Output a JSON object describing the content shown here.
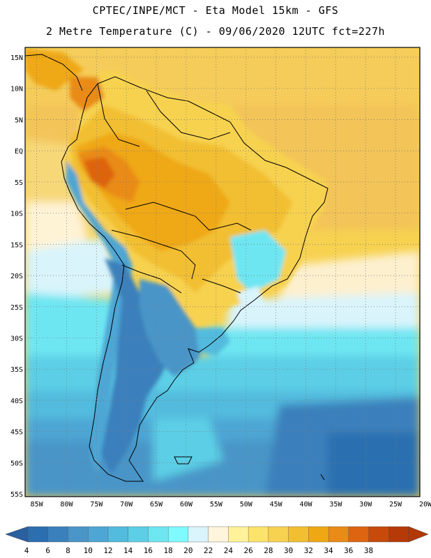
{
  "header": {
    "line1": "CPTEC/INPE/MCT -  Eta Model 15km - GFS",
    "line2": "2 Metre Temperature (C) - 09/06/2020 12UTC fct=227h"
  },
  "map": {
    "lat_labels": [
      "15N",
      "10N",
      "5N",
      "EQ",
      "5S",
      "10S",
      "15S",
      "20S",
      "25S",
      "30S",
      "35S",
      "40S",
      "45S",
      "50S",
      "55S"
    ],
    "lon_labels": [
      "85W",
      "80W",
      "75W",
      "70W",
      "65W",
      "60W",
      "55W",
      "50W",
      "45W",
      "40W",
      "35W",
      "30W",
      "25W",
      "20W"
    ],
    "lat_range": [
      15,
      -57
    ],
    "lon_range": [
      -86,
      -20
    ]
  },
  "colorbar": {
    "tick_labels": [
      "4",
      "6",
      "8",
      "10",
      "12",
      "14",
      "16",
      "18",
      "20",
      "22",
      "24",
      "26",
      "28",
      "30",
      "32",
      "34",
      "36",
      "38"
    ],
    "colors": [
      "#2b6fb0",
      "#3a80bc",
      "#4a95c8",
      "#4ea6d4",
      "#52bbde",
      "#5ccfe6",
      "#6ee6f2",
      "#7ffaff",
      "#d9f4fb",
      "#fff5dc",
      "#fff29a",
      "#fce36a",
      "#f7d250",
      "#f2bf30",
      "#efa814",
      "#e98b16",
      "#dd6410",
      "#c64a0a",
      "#b53a08"
    ],
    "low_arrow_color": "#2a5fa0",
    "high_arrow_color": "#b23808"
  }
}
